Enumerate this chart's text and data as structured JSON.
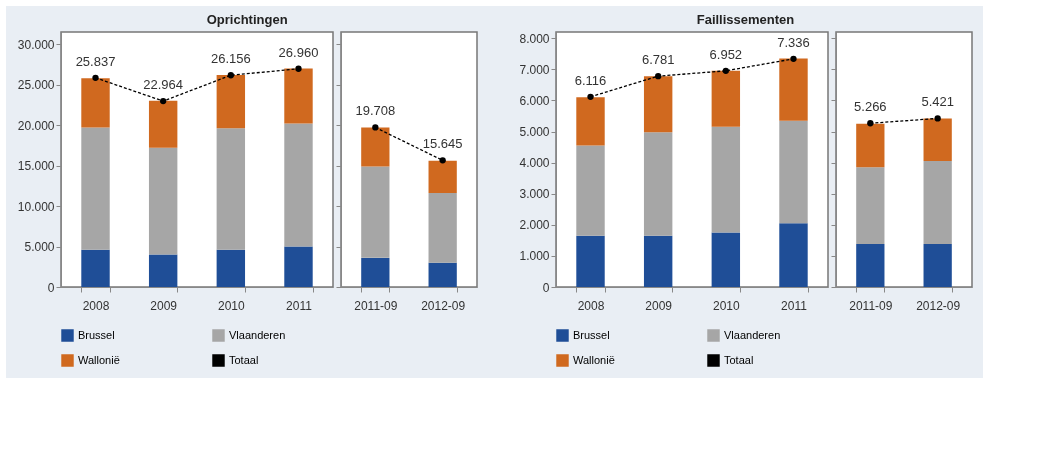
{
  "chart_data": [
    {
      "type": "bar",
      "title": "Oprichtingen",
      "stacked": true,
      "legend": "bottom",
      "marker": "circle",
      "line_style": "dashed",
      "categories": [
        "2008",
        "2009",
        "2010",
        "2011"
      ],
      "ylim": [
        0,
        31500
      ],
      "yticks": [
        {
          "value": 0,
          "label": "0"
        },
        {
          "value": 5000,
          "label": "5.000"
        },
        {
          "value": 10000,
          "label": "10.000"
        },
        {
          "value": 15000,
          "label": "15.000"
        },
        {
          "value": 20000,
          "label": "20.000"
        },
        {
          "value": 25000,
          "label": "25.000"
        },
        {
          "value": 30000,
          "label": "30.000"
        }
      ],
      "series": [
        {
          "name": "Brussel",
          "color": "#1f4e97",
          "values": [
            4600,
            4000,
            4600,
            5000
          ]
        },
        {
          "name": "Vlaanderen",
          "color": "#a6a6a6",
          "values": [
            15100,
            13200,
            15000,
            15200
          ]
        },
        {
          "name": "Wallonië",
          "color": "#d0691f",
          "values": [
            6100,
            5800,
            6600,
            6800
          ]
        },
        {
          "name": "Totaal",
          "type": "line",
          "color": "#000000",
          "values": [
            25837,
            22964,
            26156,
            26960
          ],
          "value_labels": [
            "25.837",
            "22.964",
            "26.156",
            "26.960"
          ]
        }
      ]
    },
    {
      "type": "bar",
      "stacked": true,
      "marker": "circle",
      "line_style": "dashed",
      "tick_labels": "x",
      "categories": [
        "2011-09",
        "2012-09"
      ],
      "ylim": [
        0,
        31500
      ],
      "yticks": [
        {
          "value": 0,
          "label": null
        },
        {
          "value": 5000,
          "label": null
        },
        {
          "value": 10000,
          "label": null
        },
        {
          "value": 15000,
          "label": null
        },
        {
          "value": 20000,
          "label": null
        },
        {
          "value": 25000,
          "label": null
        },
        {
          "value": 30000,
          "label": null
        }
      ],
      "series": [
        {
          "color": "#1f4e97",
          "values": [
            3600,
            3000
          ]
        },
        {
          "color": "#a6a6a6",
          "values": [
            11300,
            8600
          ]
        },
        {
          "color": "#d0691f",
          "values": [
            4800,
            4000
          ]
        },
        {
          "type": "line",
          "color": "#000000",
          "values": [
            19708,
            15645
          ],
          "value_labels": [
            "19.708",
            "15.645"
          ]
        }
      ]
    },
    {
      "type": "bar",
      "title": "Faillissementen",
      "stacked": true,
      "legend": "bottom",
      "marker": "circle",
      "line_style": "dashed",
      "categories": [
        "2008",
        "2009",
        "2010",
        "2011"
      ],
      "ylim": [
        0,
        8200
      ],
      "yticks": [
        {
          "value": 0,
          "label": "0"
        },
        {
          "value": 1000,
          "label": "1.000"
        },
        {
          "value": 2000,
          "label": "2.000"
        },
        {
          "value": 3000,
          "label": "3.000"
        },
        {
          "value": 4000,
          "label": "4.000"
        },
        {
          "value": 5000,
          "label": "5.000"
        },
        {
          "value": 6000,
          "label": "6.000"
        },
        {
          "value": 7000,
          "label": "7.000"
        },
        {
          "value": 8000,
          "label": "8.000"
        }
      ],
      "series": [
        {
          "name": "Brussel",
          "color": "#1f4e97",
          "values": [
            1650,
            1650,
            1750,
            2050
          ]
        },
        {
          "name": "Vlaanderen",
          "color": "#a6a6a6",
          "values": [
            2900,
            3330,
            3400,
            3300
          ]
        },
        {
          "name": "Wallonië",
          "color": "#d0691f",
          "values": [
            1550,
            1800,
            1800,
            2000
          ]
        },
        {
          "name": "Totaal",
          "type": "line",
          "color": "#000000",
          "values": [
            6116,
            6781,
            6952,
            7336
          ],
          "value_labels": [
            "6.116",
            "6.781",
            "6.952",
            "7.336"
          ]
        }
      ]
    },
    {
      "type": "bar",
      "stacked": true,
      "marker": "circle",
      "line_style": "dashed",
      "tick_labels": "x",
      "categories": [
        "2011-09",
        "2012-09"
      ],
      "ylim": [
        0,
        8200
      ],
      "yticks": [
        {
          "value": 0,
          "label": null
        },
        {
          "value": 1000,
          "label": null
        },
        {
          "value": 2000,
          "label": null
        },
        {
          "value": 3000,
          "label": null
        },
        {
          "value": 4000,
          "label": null
        },
        {
          "value": 5000,
          "label": null
        },
        {
          "value": 6000,
          "label": null
        },
        {
          "value": 7000,
          "label": null
        },
        {
          "value": 8000,
          "label": null
        }
      ],
      "series": [
        {
          "color": "#1f4e97",
          "values": [
            1380,
            1380
          ]
        },
        {
          "color": "#a6a6a6",
          "values": [
            2470,
            2670
          ]
        },
        {
          "color": "#d0691f",
          "values": [
            1400,
            1370
          ]
        },
        {
          "type": "line",
          "color": "#000000",
          "values": [
            5266,
            5421
          ],
          "value_labels": [
            "5.266",
            "5.421"
          ]
        }
      ]
    }
  ]
}
